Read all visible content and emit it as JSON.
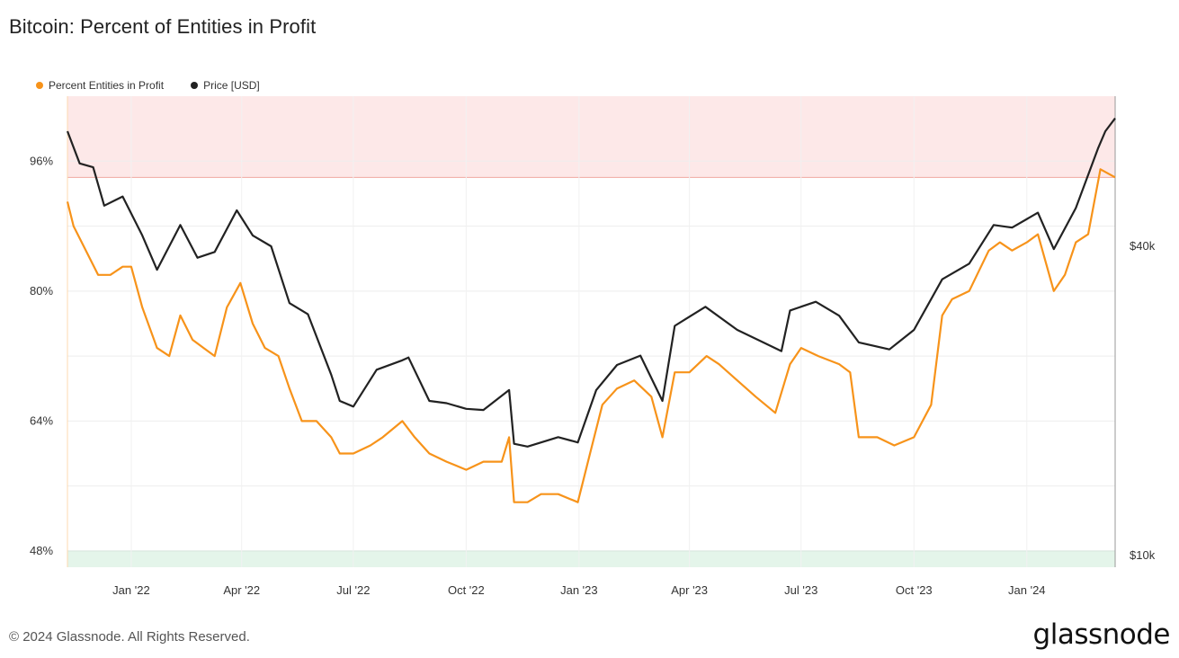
{
  "title": "Bitcoin: Percent of Entities in Profit",
  "legend": [
    {
      "label": "Percent Entities in Profit",
      "color": "#f7931a"
    },
    {
      "label": "Price [USD]",
      "color": "#222222"
    }
  ],
  "footer": {
    "copyright": "© 2024 Glassnode. All Rights Reserved.",
    "brand": "glassnode"
  },
  "chart_data": {
    "type": "line",
    "left_axis": {
      "ticks": [
        "96%",
        "80%",
        "64%",
        "48%"
      ],
      "tick_values": [
        96,
        80,
        64,
        48
      ]
    },
    "right_axis": {
      "scale": "log",
      "ticks": [
        "$40k",
        "$10k"
      ],
      "tick_values": [
        40000,
        10000
      ]
    },
    "x_ticks": [
      "Jan '22",
      "Apr '22",
      "Jul '22",
      "Oct '22",
      "Jan '23",
      "Apr '23",
      "Jul '23",
      "Oct '23",
      "Jan '24"
    ],
    "x_tick_dates": [
      "2022-01-01",
      "2022-04-01",
      "2022-07-01",
      "2022-10-01",
      "2023-01-01",
      "2023-04-01",
      "2023-07-01",
      "2023-10-01",
      "2024-01-01"
    ],
    "x_range": [
      "2021-11-10",
      "2024-03-13"
    ],
    "bands": [
      {
        "name": "upper",
        "from": 94,
        "to": 104,
        "color": "#fde8e8",
        "line_color": "#f0a8a0"
      },
      {
        "name": "lower",
        "from": 46,
        "to": 48,
        "color": "#e4f5ea",
        "line_color": "#7cc79a"
      }
    ],
    "series": [
      {
        "name": "Percent Entities in Profit",
        "color": "#f7931a",
        "axis": "left",
        "points": [
          [
            "2021-11-10",
            91
          ],
          [
            "2021-11-15",
            88
          ],
          [
            "2021-11-25",
            85
          ],
          [
            "2021-12-05",
            82
          ],
          [
            "2021-12-15",
            82
          ],
          [
            "2021-12-25",
            83
          ],
          [
            "2022-01-01",
            83
          ],
          [
            "2022-01-10",
            78
          ],
          [
            "2022-01-22",
            73
          ],
          [
            "2022-02-01",
            72
          ],
          [
            "2022-02-10",
            77
          ],
          [
            "2022-02-20",
            74
          ],
          [
            "2022-03-01",
            73
          ],
          [
            "2022-03-10",
            72
          ],
          [
            "2022-03-20",
            78
          ],
          [
            "2022-03-31",
            81
          ],
          [
            "2022-04-10",
            76
          ],
          [
            "2022-04-20",
            73
          ],
          [
            "2022-05-01",
            72
          ],
          [
            "2022-05-10",
            68
          ],
          [
            "2022-05-20",
            64
          ],
          [
            "2022-06-01",
            64
          ],
          [
            "2022-06-13",
            62
          ],
          [
            "2022-06-20",
            60
          ],
          [
            "2022-07-01",
            60
          ],
          [
            "2022-07-15",
            61
          ],
          [
            "2022-07-25",
            62
          ],
          [
            "2022-08-10",
            64
          ],
          [
            "2022-08-20",
            62
          ],
          [
            "2022-09-01",
            60
          ],
          [
            "2022-09-15",
            59
          ],
          [
            "2022-10-01",
            58
          ],
          [
            "2022-10-15",
            59
          ],
          [
            "2022-10-30",
            59
          ],
          [
            "2022-11-05",
            62
          ],
          [
            "2022-11-09",
            54
          ],
          [
            "2022-11-20",
            54
          ],
          [
            "2022-12-01",
            55
          ],
          [
            "2022-12-15",
            55
          ],
          [
            "2022-12-31",
            54
          ],
          [
            "2023-01-10",
            60
          ],
          [
            "2023-01-20",
            66
          ],
          [
            "2023-02-01",
            68
          ],
          [
            "2023-02-15",
            69
          ],
          [
            "2023-03-01",
            67
          ],
          [
            "2023-03-10",
            62
          ],
          [
            "2023-03-20",
            70
          ],
          [
            "2023-04-01",
            70
          ],
          [
            "2023-04-15",
            72
          ],
          [
            "2023-04-25",
            71
          ],
          [
            "2023-05-10",
            69
          ],
          [
            "2023-05-25",
            67
          ],
          [
            "2023-06-10",
            65
          ],
          [
            "2023-06-22",
            71
          ],
          [
            "2023-07-01",
            73
          ],
          [
            "2023-07-15",
            72
          ],
          [
            "2023-08-01",
            71
          ],
          [
            "2023-08-10",
            70
          ],
          [
            "2023-08-17",
            62
          ],
          [
            "2023-09-01",
            62
          ],
          [
            "2023-09-15",
            61
          ],
          [
            "2023-10-01",
            62
          ],
          [
            "2023-10-15",
            66
          ],
          [
            "2023-10-24",
            77
          ],
          [
            "2023-11-01",
            79
          ],
          [
            "2023-11-15",
            80
          ],
          [
            "2023-12-01",
            85
          ],
          [
            "2023-12-10",
            86
          ],
          [
            "2023-12-20",
            85
          ],
          [
            "2024-01-01",
            86
          ],
          [
            "2024-01-10",
            87
          ],
          [
            "2024-01-23",
            80
          ],
          [
            "2024-02-01",
            82
          ],
          [
            "2024-02-10",
            86
          ],
          [
            "2024-02-20",
            87
          ],
          [
            "2024-03-01",
            95
          ],
          [
            "2024-03-13",
            94
          ]
        ]
      },
      {
        "name": "Price [USD]",
        "color": "#222222",
        "axis": "right",
        "points": [
          [
            "2021-11-10",
            67000
          ],
          [
            "2021-11-20",
            58000
          ],
          [
            "2021-12-01",
            57000
          ],
          [
            "2021-12-10",
            48000
          ],
          [
            "2021-12-25",
            50000
          ],
          [
            "2022-01-10",
            42000
          ],
          [
            "2022-01-22",
            36000
          ],
          [
            "2022-02-10",
            44000
          ],
          [
            "2022-02-24",
            38000
          ],
          [
            "2022-03-10",
            39000
          ],
          [
            "2022-03-28",
            47000
          ],
          [
            "2022-04-10",
            42000
          ],
          [
            "2022-04-25",
            40000
          ],
          [
            "2022-05-10",
            31000
          ],
          [
            "2022-05-25",
            29500
          ],
          [
            "2022-06-13",
            22500
          ],
          [
            "2022-06-20",
            20000
          ],
          [
            "2022-07-01",
            19500
          ],
          [
            "2022-07-20",
            23000
          ],
          [
            "2022-08-10",
            24000
          ],
          [
            "2022-08-15",
            24300
          ],
          [
            "2022-09-01",
            20000
          ],
          [
            "2022-09-15",
            19800
          ],
          [
            "2022-10-01",
            19300
          ],
          [
            "2022-10-15",
            19200
          ],
          [
            "2022-11-05",
            21000
          ],
          [
            "2022-11-09",
            16500
          ],
          [
            "2022-11-20",
            16300
          ],
          [
            "2022-12-15",
            17000
          ],
          [
            "2022-12-31",
            16600
          ],
          [
            "2023-01-15",
            21000
          ],
          [
            "2023-02-01",
            23500
          ],
          [
            "2023-02-20",
            24500
          ],
          [
            "2023-03-10",
            20000
          ],
          [
            "2023-03-20",
            28000
          ],
          [
            "2023-04-14",
            30500
          ],
          [
            "2023-05-10",
            27500
          ],
          [
            "2023-06-15",
            25000
          ],
          [
            "2023-06-22",
            30000
          ],
          [
            "2023-07-13",
            31200
          ],
          [
            "2023-08-01",
            29300
          ],
          [
            "2023-08-17",
            26000
          ],
          [
            "2023-09-11",
            25200
          ],
          [
            "2023-10-01",
            27500
          ],
          [
            "2023-10-24",
            34500
          ],
          [
            "2023-11-15",
            37000
          ],
          [
            "2023-12-05",
            44000
          ],
          [
            "2023-12-20",
            43500
          ],
          [
            "2024-01-10",
            46500
          ],
          [
            "2024-01-23",
            39500
          ],
          [
            "2024-02-10",
            47500
          ],
          [
            "2024-02-28",
            62000
          ],
          [
            "2024-03-05",
            67000
          ],
          [
            "2024-03-13",
            71000
          ]
        ]
      }
    ],
    "grid": true,
    "legend_position": "top-left"
  }
}
